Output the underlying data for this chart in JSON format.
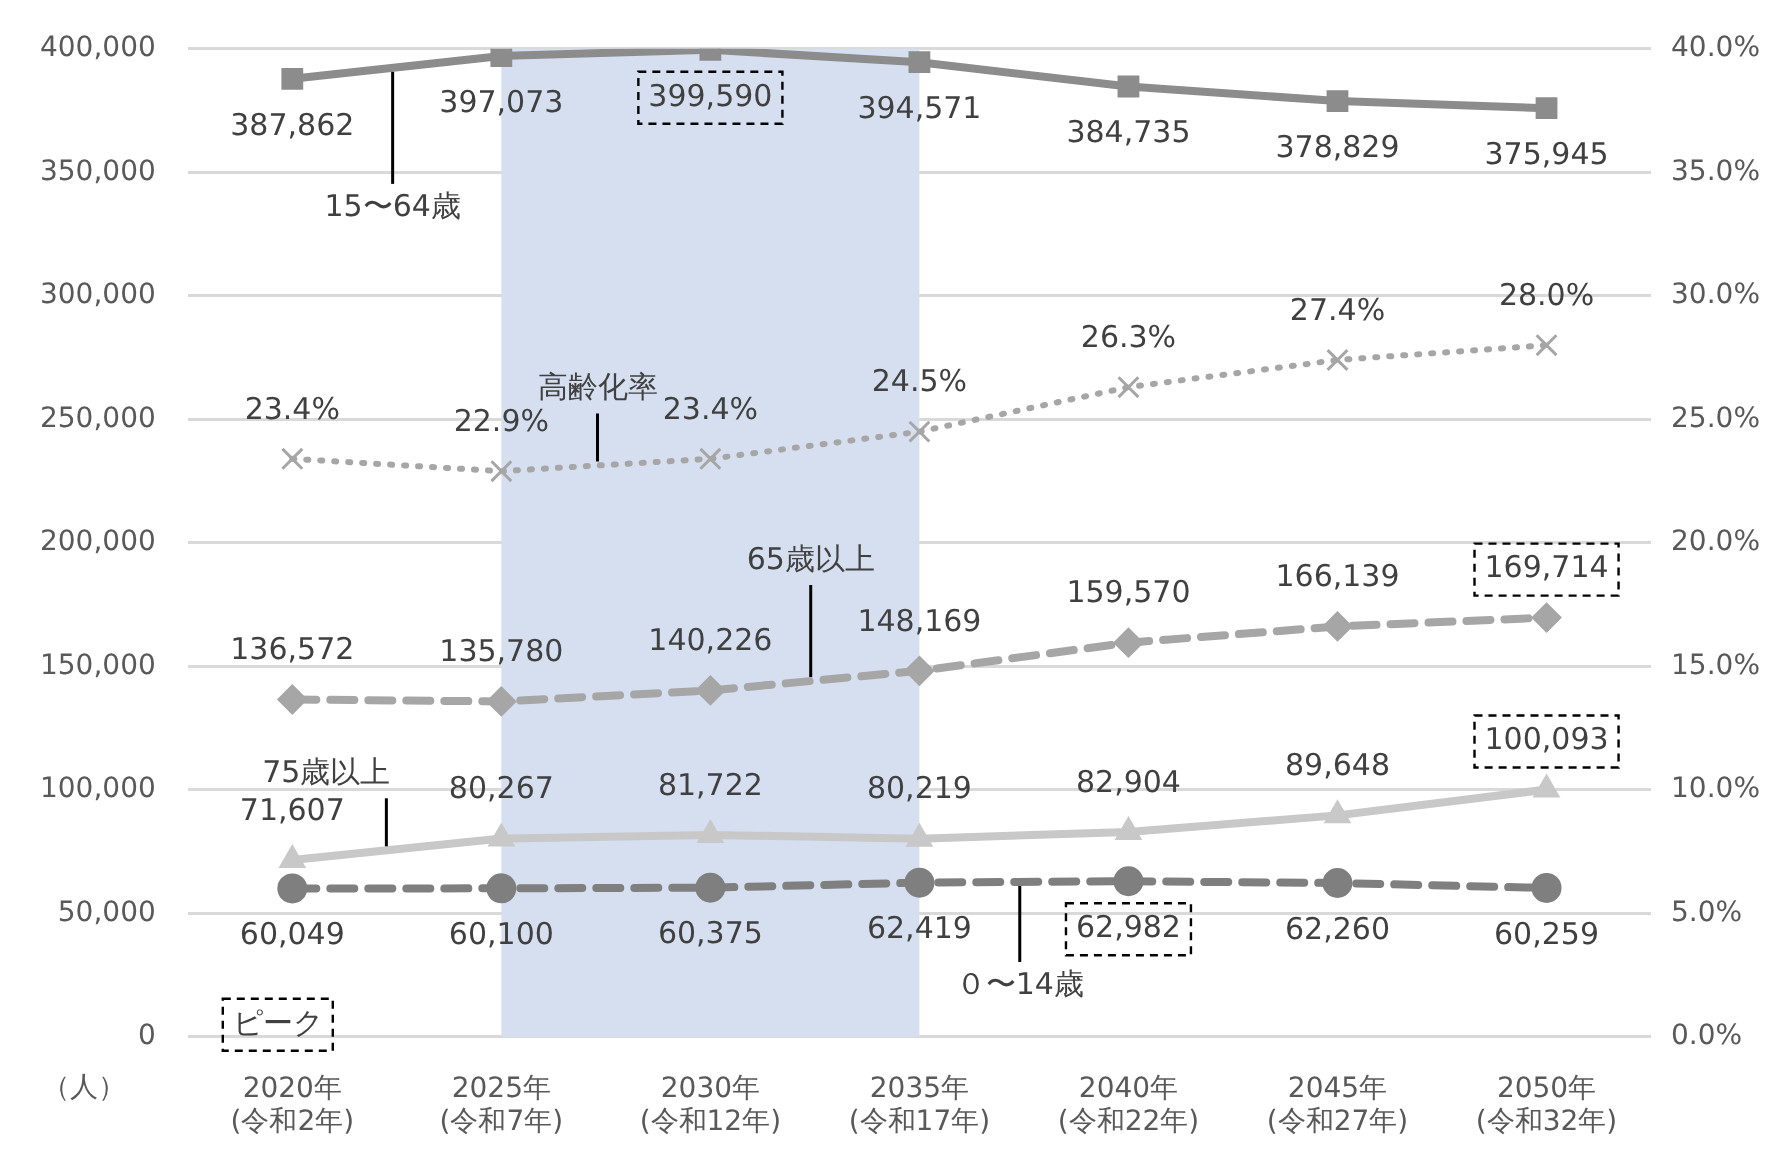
{
  "chart_data": {
    "type": "line",
    "categories": [
      "2020年\n(令和2年)",
      "2025年\n(令和7年)",
      "2030年\n(令和12年)",
      "2035年\n(令和17年)",
      "2040年\n(令和22年)",
      "2045年\n(令和27年)",
      "2050年\n(令和32年)"
    ],
    "ylabel": "（人）",
    "ylim": [
      0,
      400000
    ],
    "yticks": [
      {
        "value": 0,
        "label": "0"
      },
      {
        "value": 50000,
        "label": "50,000"
      },
      {
        "value": 100000,
        "label": "100,000"
      },
      {
        "value": 150000,
        "label": "150,000"
      },
      {
        "value": 200000,
        "label": "200,000"
      },
      {
        "value": 250000,
        "label": "250,000"
      },
      {
        "value": 300000,
        "label": "300,000"
      },
      {
        "value": 350000,
        "label": "350,000"
      },
      {
        "value": 400000,
        "label": "400,000"
      }
    ],
    "y2lim": [
      0,
      40
    ],
    "y2ticks": [
      {
        "value": 0,
        "label": "0.0%"
      },
      {
        "value": 5,
        "label": "5.0%"
      },
      {
        "value": 10,
        "label": "10.0%"
      },
      {
        "value": 15,
        "label": "15.0%"
      },
      {
        "value": 20,
        "label": "20.0%"
      },
      {
        "value": 25,
        "label": "25.0%"
      },
      {
        "value": 30,
        "label": "30.0%"
      },
      {
        "value": 35,
        "label": "35.0%"
      },
      {
        "value": 40,
        "label": "40.0%"
      }
    ],
    "series": [
      {
        "name": "15〜64歳",
        "color": "#8c8c8c",
        "marker": "square",
        "line_style": "solid",
        "values": [
          387862,
          397073,
          399590,
          394571,
          384735,
          378829,
          375945
        ],
        "value_labels": [
          "387,862",
          "397,073",
          "399,590",
          "394,571",
          "384,735",
          "378,829",
          "375,945"
        ]
      },
      {
        "name": "高齢化率",
        "color": "#a6a6a6",
        "marker": "cross",
        "line_style": "dotted",
        "axis": "y2",
        "values": [
          23.4,
          22.9,
          23.4,
          24.5,
          26.3,
          27.4,
          28.0
        ],
        "value_labels": [
          "23.4%",
          "22.9%",
          "23.4%",
          "24.5%",
          "26.3%",
          "27.4%",
          "28.0%"
        ]
      },
      {
        "name": "65歳以上",
        "color": "#a6a6a6",
        "marker": "diamond",
        "line_style": "dashed",
        "values": [
          136572,
          135780,
          140226,
          148169,
          159570,
          166139,
          169714
        ],
        "value_labels": [
          "136,572",
          "135,780",
          "140,226",
          "148,169",
          "159,570",
          "166,139",
          "169,714"
        ]
      },
      {
        "name": "75歳以上",
        "color": "#c8c8c8",
        "marker": "triangle",
        "line_style": "solid",
        "values": [
          71607,
          80267,
          81722,
          80219,
          82904,
          89648,
          100093
        ],
        "value_labels": [
          "71,607",
          "80,267",
          "81,722",
          "80,219",
          "82,904",
          "89,648",
          "100,093"
        ]
      },
      {
        "name": "０〜14歳",
        "color": "#7f7f7f",
        "marker": "circle",
        "line_style": "dashed",
        "values": [
          60049,
          60100,
          60375,
          62419,
          62982,
          62260,
          60259
        ],
        "value_labels": [
          "60,049",
          "60,100",
          "60,375",
          "62,419",
          "62,982",
          "62,260",
          "60,259"
        ]
      }
    ],
    "bands": [
      {
        "axis": "x",
        "from": "2025年\n(令和7年)",
        "to": "2035年\n(令和17年)",
        "color": "#d6dff0"
      }
    ],
    "annotations": [
      "ピーク"
    ],
    "grid": "y",
    "legend": false
  }
}
